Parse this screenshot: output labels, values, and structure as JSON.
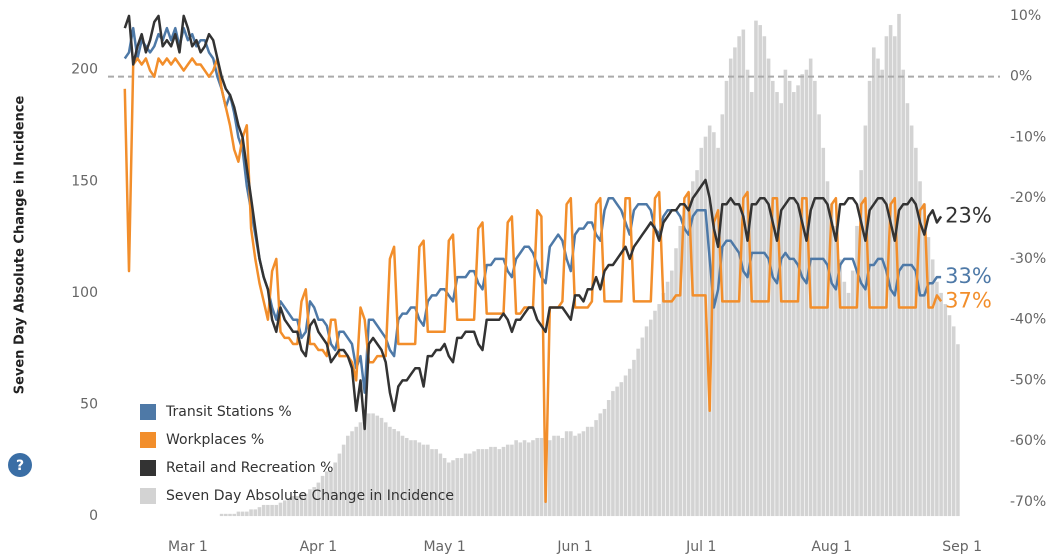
{
  "chart_data": {
    "type": "bar-line",
    "ylabel": "Seven Day Absolute Change in Incidence",
    "x": [
      46,
      47,
      48,
      49,
      50,
      51,
      52,
      53,
      54,
      55,
      56,
      57,
      58,
      59,
      60,
      61,
      62,
      63,
      64,
      65,
      66,
      67,
      68,
      69,
      70,
      71,
      72,
      73,
      74,
      75,
      76,
      77,
      78,
      79,
      80,
      81,
      82,
      83,
      84,
      85,
      86,
      87,
      88,
      89,
      90,
      91,
      92,
      93,
      94,
      95,
      96,
      97,
      98,
      99,
      100,
      101,
      102,
      103,
      104,
      105,
      106,
      107,
      108,
      109,
      110,
      111,
      112,
      113,
      114,
      115,
      116,
      117,
      118,
      119,
      120,
      121,
      122,
      123,
      124,
      125,
      126,
      127,
      128,
      129,
      130,
      131,
      132,
      133,
      134,
      135,
      136,
      137,
      138,
      139,
      140,
      141,
      142,
      143,
      144,
      145,
      146,
      147,
      148,
      149,
      150,
      151,
      152,
      153,
      154,
      155,
      156,
      157,
      158,
      159,
      160,
      161,
      162,
      163,
      164,
      165,
      166,
      167,
      168,
      169,
      170,
      171,
      172,
      173,
      174,
      175,
      176,
      177,
      178,
      179,
      180,
      181,
      182,
      183,
      184,
      185,
      186,
      187,
      188,
      189,
      190,
      191,
      192,
      193,
      194,
      195,
      196,
      197,
      198,
      199,
      200,
      201,
      202,
      203,
      204,
      205,
      206,
      207,
      208,
      209,
      210,
      211,
      212,
      213,
      214,
      215,
      216,
      217,
      218,
      219,
      220,
      221,
      222,
      223,
      224,
      225,
      226,
      227,
      228,
      229,
      230,
      231,
      232,
      233,
      234,
      235,
      236,
      237,
      238,
      239,
      240,
      241,
      242,
      243,
      244
    ],
    "xlim": [
      42,
      254
    ],
    "xticks": [
      {
        "value": 61,
        "label": "Mar 1"
      },
      {
        "value": 92,
        "label": "Apr 1"
      },
      {
        "value": 122,
        "label": "May 1"
      },
      {
        "value": 153,
        "label": "Jun 1"
      },
      {
        "value": 183,
        "label": "Jul 1"
      },
      {
        "value": 214,
        "label": "Aug 1"
      },
      {
        "value": 245,
        "label": "Sep 1"
      }
    ],
    "ylim": [
      -4,
      229
    ],
    "yticks": [
      0,
      50,
      100,
      150,
      200
    ],
    "y2lim": [
      -73.8,
      11.8
    ],
    "y2ticks": [
      {
        "value": 10,
        "label": "10%"
      },
      {
        "value": 0,
        "label": "0%"
      },
      {
        "value": -10,
        "label": "-10%"
      },
      {
        "value": -20,
        "label": "-20%"
      },
      {
        "value": -30,
        "label": "-30%"
      },
      {
        "value": -40,
        "label": "-40%"
      },
      {
        "value": -50,
        "label": "-50%"
      },
      {
        "value": -60,
        "label": "-60%"
      },
      {
        "value": -70,
        "label": "-70%"
      }
    ],
    "reference_line_y2": 0,
    "legend": "lower left",
    "series": [
      {
        "name": "Transit Stations %",
        "type": "line",
        "axis": "y2",
        "color": "#4e79a7",
        "end_label": "33%",
        "values": [
          3,
          4,
          8,
          3,
          6,
          5,
          4,
          5,
          7,
          6,
          8,
          6,
          8,
          5,
          8,
          6,
          7,
          5,
          6,
          6,
          4,
          3,
          0,
          -2,
          -5,
          -3,
          -6,
          -10,
          -12,
          -18,
          -22,
          -26,
          -30,
          -33,
          -35,
          -38,
          -40,
          -37,
          -38,
          -39,
          -40,
          -40,
          -43,
          -42,
          -37,
          -38,
          -40,
          -40,
          -41,
          -44,
          -45,
          -42,
          -42,
          -43,
          -44,
          -48,
          -46,
          -52,
          -40,
          -40,
          -41,
          -42,
          -43,
          -45,
          -46,
          -40,
          -39,
          -39,
          -38,
          -38,
          -40,
          -41,
          -37,
          -36,
          -36,
          -35,
          -35,
          -36,
          -37,
          -33,
          -33,
          -33,
          -32,
          -32,
          -34,
          -35,
          -31,
          -31,
          -30,
          -30,
          -30,
          -32,
          -33,
          -30,
          -29,
          -28,
          -28,
          -29,
          -31,
          -33,
          -34,
          -28,
          -27,
          -26,
          -27,
          -30,
          -32,
          -26,
          -25,
          -25,
          -24,
          -24,
          -26,
          -27,
          -22,
          -20,
          -20,
          -21,
          -22,
          -24,
          -26,
          -22,
          -21,
          -21,
          -21,
          -22,
          -25,
          -26,
          -23,
          -22,
          -22,
          -22,
          -23,
          -25,
          -26,
          -23,
          -22,
          -22,
          -22,
          -30,
          -38,
          -35,
          -28,
          -27,
          -27,
          -28,
          -29,
          -32,
          -33,
          -29,
          -29,
          -29,
          -29,
          -30,
          -33,
          -34,
          -30,
          -29,
          -30,
          -30,
          -31,
          -33,
          -34,
          -30,
          -30,
          -30,
          -30,
          -31,
          -34,
          -35,
          -31,
          -30,
          -30,
          -30,
          -32,
          -34,
          -35,
          -31,
          -31,
          -30,
          -30,
          -32,
          -35,
          -36,
          -32,
          -31,
          -31,
          -31,
          -32,
          -36,
          -36,
          -34,
          -34,
          -33,
          -33,
          null,
          null,
          null,
          null
        ]
      },
      {
        "name": "Workplaces %",
        "type": "line",
        "axis": "y2",
        "color": "#f28e2b",
        "end_label": "37%",
        "values": [
          -2,
          -32,
          2,
          3,
          2,
          3,
          1,
          0,
          3,
          2,
          3,
          2,
          3,
          2,
          1,
          2,
          3,
          2,
          2,
          1,
          0,
          1,
          3,
          -2,
          -5,
          -8,
          -12,
          -14,
          -10,
          -8,
          -25,
          -30,
          -34,
          -37,
          -40,
          -32,
          -30,
          -42,
          -43,
          -43,
          -44,
          -44,
          -37,
          -35,
          -44,
          -44,
          -45,
          -45,
          -46,
          -40,
          -40,
          -46,
          -46,
          -46,
          -47,
          -50,
          -38,
          -40,
          -47,
          -47,
          -46,
          -46,
          -46,
          -30,
          -28,
          -44,
          -44,
          -44,
          -44,
          -44,
          -28,
          -27,
          -42,
          -42,
          -42,
          -42,
          -42,
          -27,
          -26,
          -40,
          -40,
          -40,
          -40,
          -40,
          -25,
          -24,
          -39,
          -39,
          -39,
          -39,
          -39,
          -24,
          -23,
          -39,
          -39,
          -38,
          -38,
          -38,
          -22,
          -23,
          -70,
          -38,
          -38,
          -38,
          -37,
          -21,
          -20,
          -38,
          -38,
          -38,
          -38,
          -37,
          -21,
          -20,
          -37,
          -37,
          -37,
          -37,
          -37,
          -20,
          -20,
          -37,
          -37,
          -37,
          -37,
          -37,
          -20,
          -19,
          -37,
          -37,
          -37,
          -36,
          -36,
          -20,
          -19,
          -36,
          -36,
          -36,
          -36,
          -55,
          -24,
          -22,
          -37,
          -37,
          -37,
          -37,
          -37,
          -20,
          -19,
          -37,
          -37,
          -37,
          -37,
          -37,
          -20,
          -20,
          -37,
          -37,
          -37,
          -37,
          -37,
          -20,
          -20,
          -38,
          -38,
          -38,
          -38,
          -38,
          -21,
          -20,
          -38,
          -38,
          -38,
          -38,
          -38,
          -21,
          -20,
          -38,
          -38,
          -38,
          -38,
          -38,
          -21,
          -20,
          -38,
          -38,
          -38,
          -38,
          -38,
          -22,
          -21,
          -38,
          -38,
          -36,
          -37,
          null,
          null,
          null,
          null
        ]
      },
      {
        "name": "Retail and Recreation %",
        "type": "line",
        "axis": "y2",
        "color": "#333333",
        "end_label": "23%",
        "values": [
          8,
          10,
          2,
          5,
          7,
          4,
          6,
          9,
          10,
          5,
          6,
          5,
          7,
          4,
          10,
          8,
          5,
          6,
          4,
          5,
          7,
          6,
          3,
          0,
          -2,
          -3,
          -5,
          -8,
          -10,
          -15,
          -20,
          -25,
          -30,
          -33,
          -35,
          -40,
          -42,
          -38,
          -40,
          -41,
          -42,
          -42,
          -45,
          -46,
          -41,
          -40,
          -42,
          -43,
          -44,
          -47,
          -46,
          -45,
          -45,
          -46,
          -48,
          -55,
          -50,
          -58,
          -44,
          -43,
          -44,
          -45,
          -47,
          -52,
          -55,
          -51,
          -50,
          -50,
          -49,
          -48,
          -48,
          -51,
          -46,
          -46,
          -45,
          -45,
          -44,
          -46,
          -47,
          -43,
          -43,
          -42,
          -42,
          -42,
          -44,
          -45,
          -40,
          -40,
          -40,
          -40,
          -39,
          -40,
          -42,
          -40,
          -40,
          -39,
          -38,
          -38,
          -40,
          -41,
          -42,
          -38,
          -38,
          -38,
          -38,
          -39,
          -40,
          -36,
          -36,
          -37,
          -35,
          -35,
          -33,
          -35,
          -32,
          -31,
          -31,
          -30,
          -29,
          -28,
          -30,
          -28,
          -27,
          -26,
          -25,
          -24,
          -25,
          -27,
          -24,
          -23,
          -22,
          -22,
          -21,
          -21,
          -22,
          -20,
          -19,
          -18,
          -17,
          -20,
          -25,
          -28,
          -21,
          -21,
          -20,
          -21,
          -21,
          -23,
          -27,
          -21,
          -21,
          -20,
          -20,
          -21,
          -24,
          -27,
          -22,
          -21,
          -20,
          -20,
          -21,
          -24,
          -27,
          -22,
          -20,
          -20,
          -20,
          -21,
          -24,
          -27,
          -21,
          -21,
          -20,
          -20,
          -21,
          -24,
          -27,
          -22,
          -21,
          -20,
          -20,
          -21,
          -24,
          -27,
          -22,
          -21,
          -21,
          -20,
          -21,
          -24,
          -26,
          -23,
          -22,
          -24,
          -23,
          null,
          null,
          null,
          null
        ]
      },
      {
        "name": "Seven Day Absolute Change in Incidence",
        "type": "bar",
        "axis": "y",
        "color": "#d3d3d3",
        "values": [
          0,
          0,
          0,
          0,
          0,
          0,
          0,
          0,
          0,
          0,
          0,
          0,
          0,
          0,
          0,
          0,
          0,
          0,
          0,
          0,
          0,
          0,
          0,
          1,
          1,
          1,
          1,
          2,
          2,
          2,
          3,
          3,
          4,
          5,
          5,
          5,
          5,
          6,
          7,
          8,
          9,
          9,
          10,
          10,
          12,
          13,
          15,
          18,
          20,
          20,
          24,
          28,
          32,
          36,
          38,
          40,
          42,
          44,
          46,
          46,
          45,
          44,
          42,
          40,
          39,
          38,
          36,
          35,
          34,
          34,
          33,
          32,
          32,
          30,
          30,
          28,
          26,
          24,
          25,
          26,
          26,
          28,
          28,
          29,
          30,
          30,
          30,
          31,
          31,
          30,
          31,
          32,
          32,
          34,
          33,
          34,
          33,
          34,
          35,
          35,
          34,
          34,
          36,
          36,
          35,
          38,
          38,
          36,
          37,
          38,
          40,
          40,
          43,
          46,
          48,
          52,
          56,
          58,
          60,
          63,
          66,
          70,
          75,
          80,
          85,
          88,
          92,
          95,
          100,
          105,
          110,
          120,
          130,
          138,
          145,
          150,
          155,
          165,
          170,
          175,
          172,
          165,
          180,
          195,
          205,
          210,
          215,
          218,
          200,
          190,
          222,
          220,
          215,
          205,
          195,
          190,
          185,
          200,
          195,
          190,
          193,
          198,
          200,
          205,
          195,
          180,
          165,
          150,
          140,
          130,
          115,
          105,
          100,
          110,
          130,
          155,
          175,
          195,
          210,
          205,
          200,
          215,
          220,
          215,
          225,
          200,
          185,
          175,
          165,
          150,
          140,
          125,
          115,
          105,
          100,
          95,
          90,
          85,
          77
        ]
      }
    ]
  }
}
